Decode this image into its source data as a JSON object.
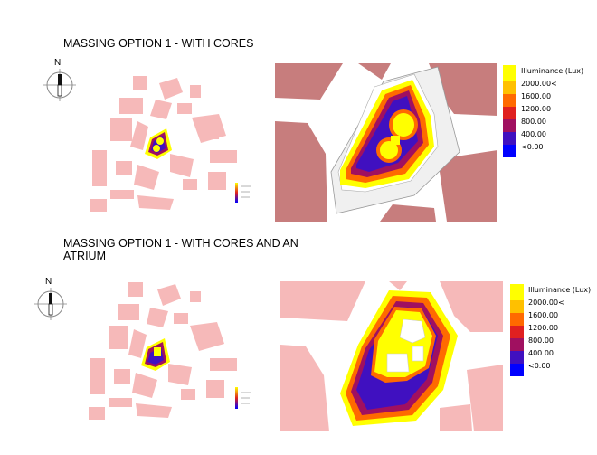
{
  "section1": {
    "title": "MASSING OPTION 1 - WITH CORES",
    "north_label": "N",
    "legend": {
      "title": "Illuminance (Lux)",
      "labels": [
        "2000.00<",
        "1600.00",
        "1200.00",
        "800.00",
        "400.00",
        "<0.00"
      ]
    }
  },
  "section2": {
    "title_line1": "MASSING OPTION 1 - WITH CORES AND AN",
    "title_line2": "ATRIUM",
    "north_label": "N",
    "legend": {
      "title": "Illuminance (Lux)",
      "labels": [
        "2000.00<",
        "1600.00",
        "1200.00",
        "800.00",
        "400.00",
        "<0.00"
      ]
    }
  },
  "colors": {
    "building_dark": "#c77d7d",
    "building_light": "#f6b9b9",
    "scale": [
      "#ffff00",
      "#ffc000",
      "#ff6a00",
      "#e02020",
      "#a01060",
      "#4010c0",
      "#0000ff"
    ]
  }
}
